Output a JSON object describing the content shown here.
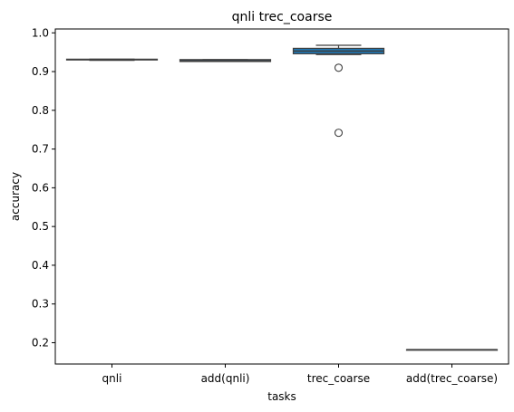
{
  "chart_data": {
    "type": "box",
    "title": "qnli trec_coarse",
    "xlabel": "tasks",
    "ylabel": "accuracy",
    "ylim": [
      0.145,
      1.01
    ],
    "yticks": [
      0.2,
      0.3,
      0.4,
      0.5,
      0.6,
      0.7,
      0.8,
      0.9,
      1.0
    ],
    "ytick_labels": [
      "0.2",
      "0.3",
      "0.4",
      "0.5",
      "0.6",
      "0.7",
      "0.8",
      "0.9",
      "1.0"
    ],
    "categories": [
      "qnli",
      "add(qnli)",
      "trec_coarse",
      "add(trec_coarse)"
    ],
    "grid": false,
    "box_color": "#1f77b4",
    "edge_color": "#3f3f3f",
    "boxes": [
      {
        "category": "qnli",
        "whisker_low": 0.929,
        "q1": 0.93,
        "median": 0.931,
        "q3": 0.932,
        "whisker_high": 0.932,
        "outliers": []
      },
      {
        "category": "add(qnli)",
        "whisker_low": 0.926,
        "q1": 0.926,
        "median": 0.928,
        "q3": 0.931,
        "whisker_high": 0.931,
        "outliers": []
      },
      {
        "category": "trec_coarse",
        "whisker_low": 0.944,
        "q1": 0.946,
        "median": 0.953,
        "q3": 0.96,
        "whisker_high": 0.968,
        "outliers": [
          0.91,
          0.742
        ]
      },
      {
        "category": "add(trec_coarse)",
        "whisker_low": 0.182,
        "q1": 0.182,
        "median": 0.182,
        "q3": 0.182,
        "whisker_high": 0.182,
        "outliers": []
      }
    ]
  }
}
